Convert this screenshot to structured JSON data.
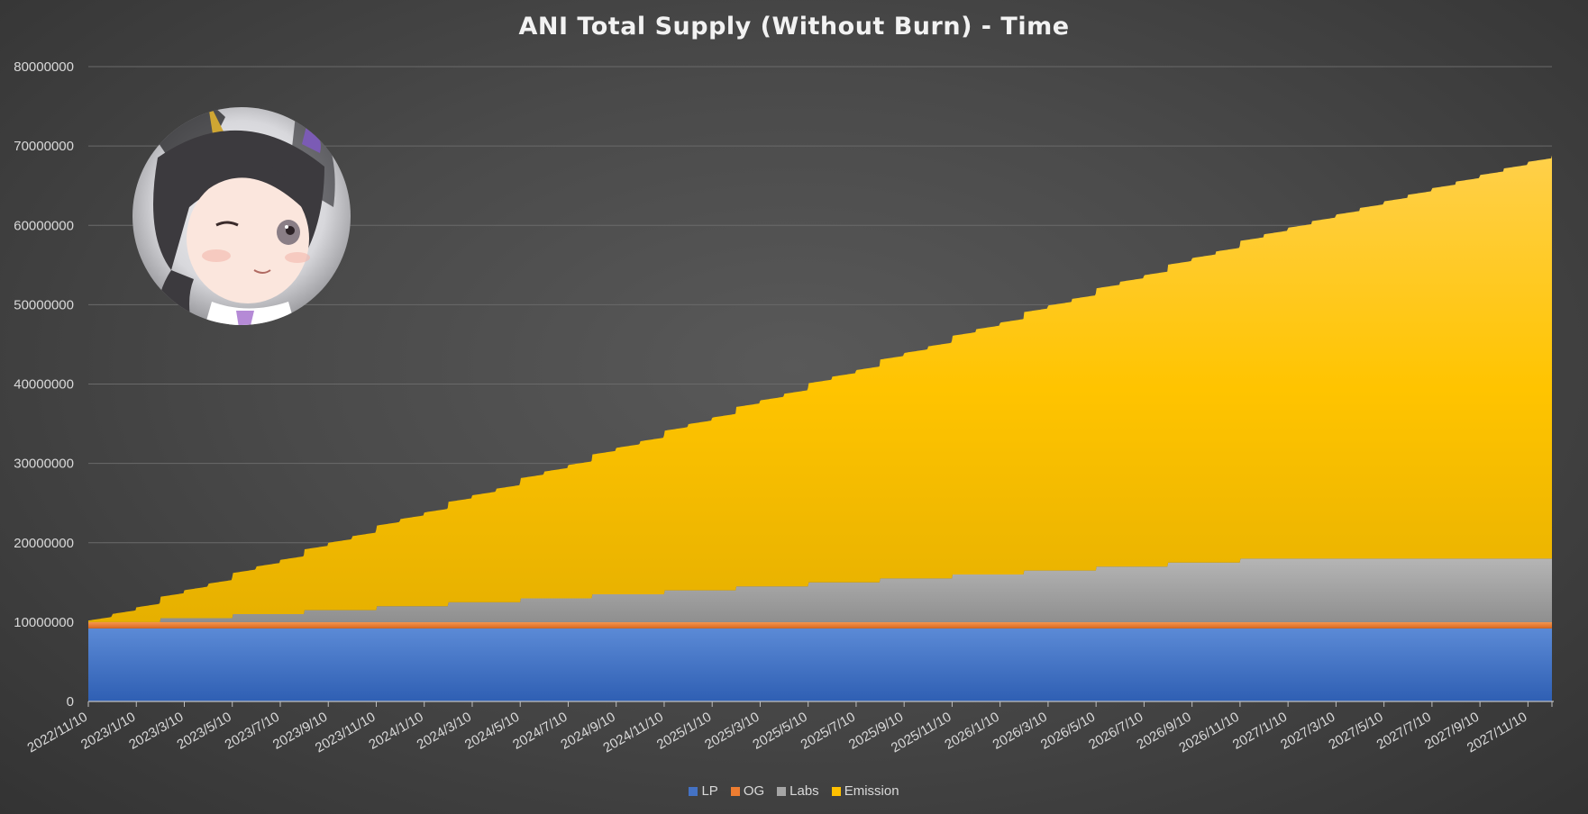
{
  "chart_data": {
    "type": "area",
    "stacked": true,
    "title": "ANI Total Supply (Without Burn) - Time",
    "xlabel": "",
    "ylabel": "",
    "ylim": [
      0,
      80000000
    ],
    "yticks": [
      "0",
      "10000000",
      "20000000",
      "30000000",
      "40000000",
      "50000000",
      "60000000",
      "70000000",
      "80000000"
    ],
    "x_tick_labels": [
      "2022/11/10",
      "2023/1/10",
      "2023/3/10",
      "2023/5/10",
      "2023/7/10",
      "2023/9/10",
      "2023/11/10",
      "2024/1/10",
      "2024/3/10",
      "2024/5/10",
      "2024/7/10",
      "2024/9/10",
      "2024/11/10",
      "2025/1/10",
      "2025/3/10",
      "2025/5/10",
      "2025/7/10",
      "2025/9/10",
      "2025/11/10",
      "2026/1/10",
      "2026/3/10",
      "2026/5/10",
      "2026/7/10",
      "2026/9/10",
      "2026/11/10",
      "2027/1/10",
      "2027/3/10",
      "2027/5/10",
      "2027/7/10",
      "2027/9/10",
      "2027/11/10"
    ],
    "x_range": [
      "2022/11/10",
      "2027/12/10"
    ],
    "grid": true,
    "legend_position": "bottom",
    "series": [
      {
        "name": "LP",
        "color": "#4472C4",
        "shape": "constant",
        "value": 9200000
      },
      {
        "name": "OG",
        "color": "#ED7D31",
        "shape": "constant",
        "value": 800000
      },
      {
        "name": "Labs",
        "color": "#A5A5A5",
        "shape": "monthly steps",
        "start": "2023/2/10",
        "end": "2026/11/10",
        "start_value": 500000,
        "end_value": 8000000,
        "step_value": 500000,
        "step_every_months": 3
      },
      {
        "name": "Emission",
        "color": "#FFC000",
        "shape": "monthly steps",
        "start": "2022/11/10",
        "end": "2027/12/10",
        "start_value": 200000,
        "end_value": 50600000,
        "increase_per_month": 830000
      }
    ]
  },
  "legend": {
    "items": [
      {
        "name": "LP",
        "color": "#4472C4"
      },
      {
        "name": "OG",
        "color": "#ED7D31"
      },
      {
        "name": "Labs",
        "color": "#A5A5A5"
      },
      {
        "name": "Emission",
        "color": "#FFC000"
      }
    ]
  }
}
